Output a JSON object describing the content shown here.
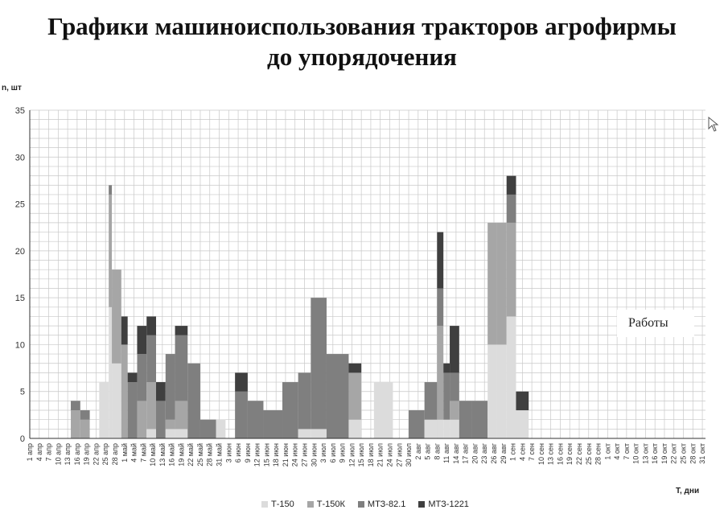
{
  "title_line1": "Графики машиноиспользования тракторов агрофирмы",
  "title_line2": "до упорядочения",
  "annotation": "Работы",
  "chart_data": {
    "type": "bar",
    "stacked": true,
    "ylabel": "n, шт",
    "xlabel": "T, дни",
    "ylim": [
      0,
      35
    ],
    "y_ticks": [
      0,
      5,
      10,
      15,
      20,
      25,
      30,
      35
    ],
    "grid": true,
    "legend_position": "bottom",
    "x_start_day": "1 апр",
    "x_days": 214,
    "x_ticks": [
      "1 апр",
      "4 апр",
      "7 апр",
      "10 апр",
      "13 апр",
      "16 апр",
      "19 апр",
      "22 апр",
      "25 апр",
      "28 апр",
      "1 май",
      "4 май",
      "7 май",
      "10 май",
      "13 май",
      "16 май",
      "19 май",
      "22 май",
      "25 май",
      "28 май",
      "31 май",
      "3 июн",
      "6 июн",
      "9 июн",
      "12 июн",
      "15 июн",
      "18 июн",
      "21 июн",
      "24 июн",
      "27 июн",
      "30 июн",
      "3 июл",
      "6 июл",
      "9 июл",
      "12 июл",
      "15 июл",
      "18 июл",
      "21 июл",
      "24 июл",
      "27 июл",
      "30 июл",
      "2 авг",
      "5 авг",
      "8 авг",
      "11 авг",
      "14 авг",
      "17 авг",
      "20 авг",
      "23 авг",
      "26 авг",
      "29 авг",
      "1 сен",
      "4 сен",
      "7 сен",
      "10 сен",
      "13 сен",
      "16 сен",
      "19 сен",
      "22 сен",
      "25 сен",
      "28 сен",
      "1 окт",
      "4 окт",
      "7 окт",
      "10 окт",
      "13 окт",
      "16 окт",
      "19 окт",
      "22 окт",
      "25 окт",
      "28 окт",
      "31 окт"
    ],
    "series": [
      {
        "name": "Т-150",
        "color": "#dcdcdc",
        "segments": [
          [
            13,
            15,
            0
          ],
          [
            16,
            18,
            0
          ],
          [
            19,
            21,
            0
          ],
          [
            22,
            24,
            6
          ],
          [
            25,
            25,
            14
          ],
          [
            26,
            28,
            8
          ],
          [
            29,
            30,
            0
          ],
          [
            31,
            33,
            0
          ],
          [
            34,
            36,
            0
          ],
          [
            37,
            39,
            1
          ],
          [
            40,
            42,
            0
          ],
          [
            43,
            45,
            1
          ],
          [
            46,
            49,
            1
          ],
          [
            50,
            53,
            0
          ],
          [
            54,
            58,
            0
          ],
          [
            59,
            61,
            2
          ],
          [
            62,
            64,
            0
          ],
          [
            65,
            68,
            0
          ],
          [
            69,
            73,
            0
          ],
          [
            74,
            79,
            0
          ],
          [
            80,
            84,
            0
          ],
          [
            85,
            88,
            1
          ],
          [
            89,
            93,
            1
          ],
          [
            94,
            100,
            0
          ],
          [
            101,
            104,
            2
          ],
          [
            105,
            108,
            0
          ],
          [
            109,
            114,
            6
          ],
          [
            115,
            119,
            0
          ],
          [
            120,
            124,
            0
          ],
          [
            125,
            128,
            2
          ],
          [
            129,
            130,
            2
          ],
          [
            131,
            132,
            2
          ],
          [
            133,
            135,
            2
          ],
          [
            136,
            139,
            0
          ],
          [
            140,
            144,
            0
          ],
          [
            145,
            147,
            10
          ],
          [
            148,
            150,
            10
          ],
          [
            151,
            153,
            13
          ],
          [
            154,
            157,
            3
          ],
          [
            158,
            160,
            0
          ]
        ]
      },
      {
        "name": "Т-150К",
        "color": "#a6a6a6",
        "segments": [
          [
            13,
            15,
            3
          ],
          [
            16,
            18,
            2
          ],
          [
            19,
            21,
            0
          ],
          [
            22,
            24,
            0
          ],
          [
            25,
            25,
            12
          ],
          [
            26,
            28,
            10
          ],
          [
            29,
            30,
            10
          ],
          [
            31,
            33,
            0
          ],
          [
            34,
            36,
            4
          ],
          [
            37,
            39,
            5
          ],
          [
            40,
            42,
            0
          ],
          [
            43,
            45,
            1
          ],
          [
            46,
            49,
            3
          ],
          [
            50,
            53,
            0
          ],
          [
            54,
            58,
            0
          ],
          [
            59,
            61,
            0
          ],
          [
            62,
            64,
            0
          ],
          [
            65,
            68,
            0
          ],
          [
            69,
            73,
            0
          ],
          [
            74,
            79,
            0
          ],
          [
            80,
            84,
            0
          ],
          [
            85,
            88,
            0
          ],
          [
            89,
            93,
            0
          ],
          [
            94,
            100,
            0
          ],
          [
            101,
            104,
            5
          ],
          [
            105,
            108,
            0
          ],
          [
            109,
            114,
            0
          ],
          [
            115,
            119,
            0
          ],
          [
            120,
            124,
            0
          ],
          [
            125,
            128,
            0
          ],
          [
            129,
            130,
            10
          ],
          [
            131,
            132,
            0
          ],
          [
            133,
            135,
            2
          ],
          [
            136,
            139,
            0
          ],
          [
            140,
            144,
            0
          ],
          [
            145,
            147,
            13
          ],
          [
            148,
            150,
            13
          ],
          [
            151,
            153,
            10
          ],
          [
            154,
            157,
            0
          ],
          [
            158,
            160,
            0
          ]
        ]
      },
      {
        "name": "МТЗ-82.1",
        "color": "#7f7f7f",
        "segments": [
          [
            13,
            15,
            1
          ],
          [
            16,
            18,
            1
          ],
          [
            19,
            21,
            0
          ],
          [
            22,
            24,
            0
          ],
          [
            25,
            25,
            1
          ],
          [
            26,
            28,
            0
          ],
          [
            29,
            30,
            0
          ],
          [
            31,
            33,
            6
          ],
          [
            34,
            36,
            5
          ],
          [
            37,
            39,
            5
          ],
          [
            40,
            42,
            4
          ],
          [
            43,
            45,
            7
          ],
          [
            46,
            49,
            7
          ],
          [
            50,
            53,
            8
          ],
          [
            54,
            58,
            2
          ],
          [
            59,
            61,
            0
          ],
          [
            62,
            64,
            0
          ],
          [
            65,
            68,
            5
          ],
          [
            69,
            73,
            4
          ],
          [
            74,
            79,
            3
          ],
          [
            80,
            84,
            6
          ],
          [
            85,
            88,
            6
          ],
          [
            89,
            93,
            14
          ],
          [
            94,
            100,
            9
          ],
          [
            101,
            104,
            0
          ],
          [
            105,
            108,
            0
          ],
          [
            109,
            114,
            0
          ],
          [
            115,
            119,
            0
          ],
          [
            120,
            124,
            3
          ],
          [
            125,
            128,
            4
          ],
          [
            129,
            130,
            4
          ],
          [
            131,
            132,
            5
          ],
          [
            133,
            135,
            3
          ],
          [
            136,
            139,
            4
          ],
          [
            140,
            144,
            4
          ],
          [
            145,
            147,
            0
          ],
          [
            148,
            150,
            0
          ],
          [
            151,
            153,
            3
          ],
          [
            154,
            157,
            0
          ],
          [
            158,
            160,
            0
          ]
        ]
      },
      {
        "name": "МТЗ-1221",
        "color": "#3f3f3f",
        "segments": [
          [
            13,
            15,
            0
          ],
          [
            16,
            18,
            0
          ],
          [
            19,
            21,
            0
          ],
          [
            22,
            24,
            0
          ],
          [
            25,
            25,
            0
          ],
          [
            26,
            28,
            0
          ],
          [
            29,
            30,
            3
          ],
          [
            31,
            33,
            1
          ],
          [
            34,
            36,
            3
          ],
          [
            37,
            39,
            2
          ],
          [
            40,
            42,
            2
          ],
          [
            43,
            45,
            0
          ],
          [
            46,
            49,
            1
          ],
          [
            50,
            53,
            0
          ],
          [
            54,
            58,
            0
          ],
          [
            59,
            61,
            0
          ],
          [
            62,
            64,
            0
          ],
          [
            65,
            68,
            2
          ],
          [
            69,
            73,
            0
          ],
          [
            74,
            79,
            0
          ],
          [
            80,
            84,
            0
          ],
          [
            85,
            88,
            0
          ],
          [
            89,
            93,
            0
          ],
          [
            94,
            100,
            0
          ],
          [
            101,
            104,
            1
          ],
          [
            105,
            108,
            0
          ],
          [
            109,
            114,
            0
          ],
          [
            115,
            119,
            0
          ],
          [
            120,
            124,
            0
          ],
          [
            125,
            128,
            0
          ],
          [
            129,
            130,
            6
          ],
          [
            131,
            132,
            1
          ],
          [
            133,
            135,
            5
          ],
          [
            136,
            139,
            0
          ],
          [
            140,
            144,
            0
          ],
          [
            145,
            147,
            0
          ],
          [
            148,
            150,
            0
          ],
          [
            151,
            153,
            2
          ],
          [
            154,
            157,
            2
          ],
          [
            158,
            160,
            0
          ]
        ]
      }
    ]
  }
}
